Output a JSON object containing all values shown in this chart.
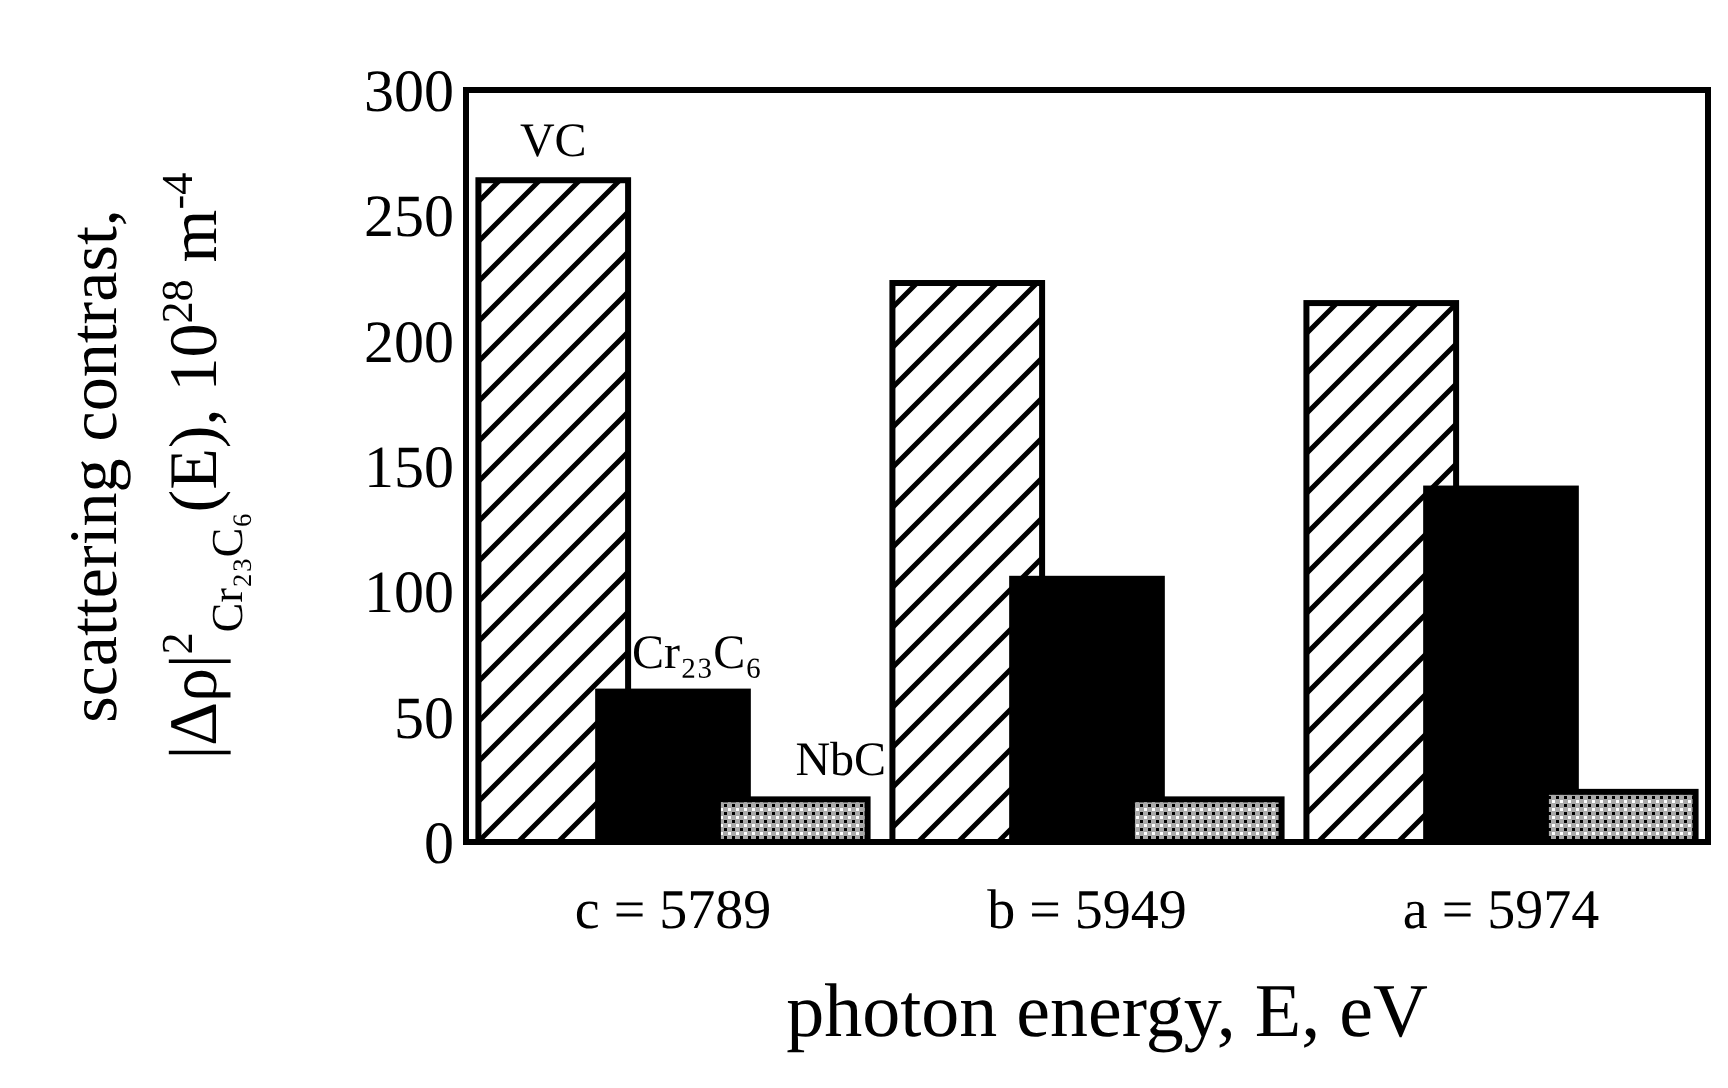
{
  "chart_data": {
    "type": "bar",
    "xlabel": "photon energy, E, eV",
    "ylabel": "scattering contrast, |Δρ|$^{2}$$_{Cr₂₃C₆}$(E), 10$^{28}$ m$^{-4}$",
    "categories": [
      "c = 5789",
      "b = 5949",
      "a = 5974"
    ],
    "series": [
      {
        "name": "VC",
        "color": "#000000",
        "values": [
          264,
          223,
          215
        ]
      },
      {
        "name": "Cr₂₃C₆",
        "color": "#000000",
        "values": [
          60,
          105,
          141
        ]
      },
      {
        "name": "NbC",
        "color": "#000000",
        "values": [
          17,
          17,
          20
        ]
      }
    ],
    "ylim": [
      0,
      300
    ],
    "yticks": [
      0,
      50,
      100,
      150,
      200,
      250,
      300
    ],
    "legend": false,
    "grid": false
  }
}
